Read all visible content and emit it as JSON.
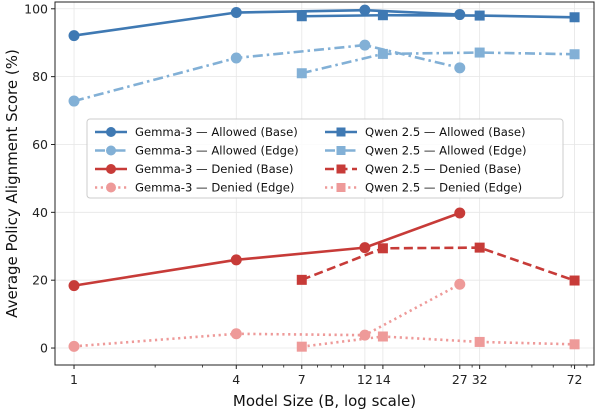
{
  "chart_data": {
    "type": "line",
    "title": "",
    "xlabel": "Model Size (B, log scale)",
    "ylabel": "Average Policy Alignment Score (%)",
    "xscale": "log",
    "xlim": [
      0.85,
      85
    ],
    "ylim": [
      -5,
      102
    ],
    "x_ticks": [
      1,
      4,
      7,
      12,
      14,
      27,
      32,
      72
    ],
    "y_ticks": [
      0,
      20,
      40,
      60,
      80,
      100
    ],
    "grid": true,
    "legend": {
      "placement": "center",
      "columns": 2
    },
    "series": [
      {
        "name": "Gemma-3 — Allowed (Base)",
        "color": "#3f79b3",
        "dash": "solid",
        "marker": "circle",
        "x": [
          1,
          4,
          12,
          27
        ],
        "y": [
          92.1,
          98.9,
          99.6,
          98.3
        ]
      },
      {
        "name": "Gemma-3 — Allowed (Edge)",
        "color": "#82b0d6",
        "dash": "dashdot",
        "marker": "circle",
        "x": [
          1,
          4,
          12,
          27
        ],
        "y": [
          72.8,
          85.5,
          89.3,
          82.6
        ]
      },
      {
        "name": "Gemma-3 — Denied (Base)",
        "color": "#c73b38",
        "dash": "solid",
        "marker": "circle",
        "x": [
          1,
          4,
          12,
          27
        ],
        "y": [
          18.4,
          26.0,
          29.6,
          39.8
        ]
      },
      {
        "name": "Gemma-3 — Denied (Edge)",
        "color": "#ee9a99",
        "dash": "dotted",
        "marker": "circle",
        "x": [
          1,
          4,
          12,
          27
        ],
        "y": [
          0.5,
          4.2,
          3.8,
          18.8
        ]
      },
      {
        "name": "Qwen 2.5 — Allowed (Base)",
        "color": "#3f79b3",
        "dash": "solid",
        "marker": "square",
        "x": [
          7,
          14,
          32,
          72
        ],
        "y": [
          97.8,
          98.1,
          98.0,
          97.5
        ]
      },
      {
        "name": "Qwen 2.5 — Allowed (Edge)",
        "color": "#82b0d6",
        "dash": "dashdot",
        "marker": "square",
        "x": [
          7,
          14,
          32,
          72
        ],
        "y": [
          81.0,
          86.7,
          87.1,
          86.6
        ]
      },
      {
        "name": "Qwen 2.5 — Denied (Base)",
        "color": "#c73b38",
        "dash": "dashed",
        "marker": "square",
        "x": [
          7,
          14,
          32,
          72
        ],
        "y": [
          20.1,
          29.4,
          29.6,
          19.9
        ]
      },
      {
        "name": "Qwen 2.5 — Denied (Edge)",
        "color": "#ee9a99",
        "dash": "dotted",
        "marker": "square",
        "x": [
          7,
          14,
          32,
          72
        ],
        "y": [
          0.4,
          3.4,
          1.8,
          1.1
        ]
      }
    ]
  }
}
